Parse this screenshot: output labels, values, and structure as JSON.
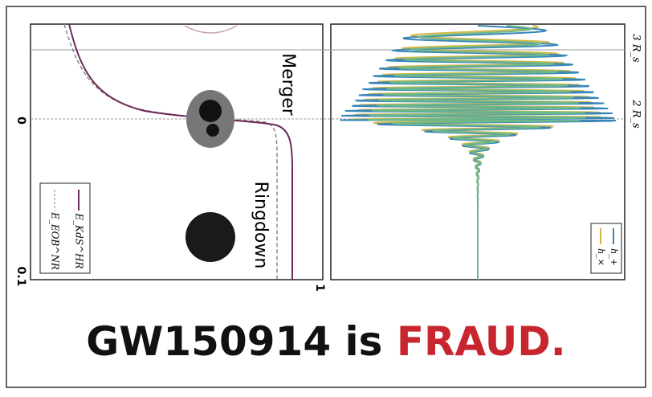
{
  "panels": {
    "left": {
      "labels": {
        "merger": "Merger",
        "ringdown": "Ringdown"
      },
      "axis": {
        "start": "0",
        "end": "0.1",
        "right": "1"
      },
      "legend": [
        "E_KdS^HR",
        "E_EOB^NR"
      ]
    },
    "right": {
      "markers": [
        "3 R_s",
        "2 R_s"
      ],
      "legend": [
        "h_+",
        "h_×"
      ]
    }
  },
  "caption": {
    "lead": "GW150914 is",
    "accent": "FRAUD."
  }
}
